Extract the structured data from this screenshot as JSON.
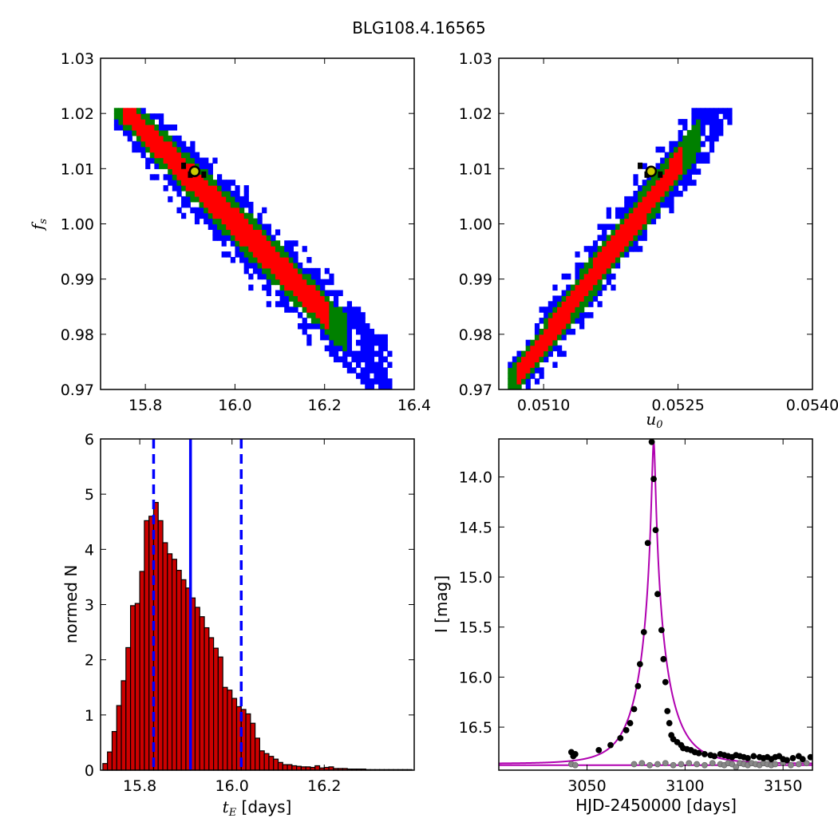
{
  "title": "BLG108.4.16565",
  "colors": {
    "sigma1": "#ff0000",
    "sigma2": "#008000",
    "sigma3": "#0000ff",
    "chain_best": "#000000",
    "best_fit_marker": "#cccc00",
    "hist_bar": "#cc0000",
    "vline": "#0000ff",
    "model": "#b000b0",
    "data_primary": "#000000",
    "data_secondary": "#888888"
  },
  "chart_data": [
    {
      "type": "heatmap",
      "panel": "tE-fs",
      "xlabel": "",
      "ylabel_var": "f",
      "ylabel_sub": "s",
      "xlim": [
        15.7,
        16.4
      ],
      "ylim": [
        0.97,
        1.03
      ],
      "xticks": [
        "15.8",
        "16.0",
        "16.2",
        "16.4"
      ],
      "yticks": [
        "0.97",
        "0.98",
        "0.99",
        "1.00",
        "1.01",
        "1.02",
        "1.03"
      ],
      "band": {
        "x0": 15.73,
        "x1": 16.38,
        "slope_points": [
          [
            15.76,
            1.02
          ],
          [
            16.31,
            0.975
          ]
        ],
        "sigma_halfwidths": [
          0.002,
          0.003,
          0.0045
        ]
      },
      "best_fit": {
        "x": 15.91,
        "y": 1.0095
      }
    },
    {
      "type": "heatmap",
      "panel": "u0-fs",
      "xlabel_var": "u",
      "xlabel_sub": "0",
      "ylabel": "",
      "xlim": [
        0.0505,
        0.054
      ],
      "ylim": [
        0.97,
        1.03
      ],
      "xticks": [
        "0.0510",
        "0.0525",
        "0.0540"
      ],
      "yticks": [
        "0.97",
        "0.98",
        "0.99",
        "1.00",
        "1.01",
        "1.02",
        "1.03"
      ],
      "band": {
        "slope_points": [
          [
            0.05075,
            0.9735
          ],
          [
            0.05295,
            1.0205
          ]
        ],
        "sigma_halfwidths": [
          0.0018,
          0.0028,
          0.0042
        ]
      },
      "best_fit": {
        "x": 0.0522,
        "y": 1.0095
      }
    },
    {
      "type": "bar",
      "panel": "tE-histogram",
      "xlabel_var": "t",
      "xlabel_sub": "E",
      "xlabel_suffix": " [days]",
      "ylabel": "normed N",
      "xlim": [
        15.715,
        16.395
      ],
      "ylim": [
        0,
        6
      ],
      "xticks": [
        "15.8",
        "16.0",
        "16.2"
      ],
      "yticks": [
        "0",
        "1",
        "2",
        "3",
        "4",
        "5",
        "6"
      ],
      "bin_start": 15.72,
      "bin_width": 0.01,
      "values": [
        0.12,
        0.33,
        0.7,
        1.17,
        1.62,
        2.22,
        2.98,
        3.02,
        3.6,
        4.52,
        4.6,
        4.85,
        4.52,
        4.12,
        3.92,
        3.82,
        3.62,
        3.45,
        3.3,
        3.12,
        2.95,
        2.78,
        2.58,
        2.4,
        2.21,
        2.05,
        1.5,
        1.45,
        1.3,
        1.15,
        1.1,
        1.02,
        0.85,
        0.58,
        0.35,
        0.3,
        0.25,
        0.2,
        0.14,
        0.1,
        0.1,
        0.08,
        0.07,
        0.06,
        0.06,
        0.05,
        0.08,
        0.04,
        0.05,
        0.06,
        0.03,
        0.03,
        0.03,
        0.02,
        0.02,
        0.02,
        0.02,
        0.01,
        0.01,
        0.01,
        0.01,
        0.01,
        0.01,
        0.01,
        0.01,
        0.01,
        0.01
      ],
      "vlines": {
        "median": 15.91,
        "lower": 15.83,
        "upper": 16.02
      }
    },
    {
      "type": "scatter",
      "panel": "light-curve",
      "xlabel": "HJD-2450000 [days]",
      "ylabel": "I [mag]",
      "xlim": [
        3005,
        3165
      ],
      "ylim": [
        16.93,
        13.62
      ],
      "xticks": [
        "3050",
        "3100",
        "3150"
      ],
      "yticks": [
        "14.0",
        "14.5",
        "15.0",
        "15.5",
        "16.0",
        "16.5"
      ],
      "model": {
        "t0": 3084.0,
        "tE": 15.91,
        "u0": 0.0522,
        "baseline_mag": 16.865,
        "fs": 1.0095,
        "secondary_baseline": 16.88
      },
      "series": [
        {
          "x": [
            3042,
            3043,
            3044,
            3056,
            3062,
            3067,
            3070,
            3072,
            3074,
            3076,
            3077,
            3079,
            3081,
            3083,
            3084,
            3085,
            3086,
            3088,
            3089,
            3090,
            3091,
            3092,
            3093,
            3094,
            3096,
            3098,
            3099,
            3101,
            3103,
            3105,
            3107,
            3110,
            3113,
            3115,
            3118,
            3120,
            3122,
            3124,
            3126,
            3128,
            3130,
            3132,
            3135,
            3138,
            3140,
            3142,
            3144,
            3146,
            3148,
            3150,
            3152,
            3155,
            3158,
            3160,
            3164
          ],
          "y": [
            16.75,
            16.79,
            16.77,
            16.73,
            16.68,
            16.61,
            16.53,
            16.46,
            16.32,
            16.09,
            15.87,
            15.55,
            14.66,
            13.65,
            14.02,
            14.53,
            15.17,
            15.53,
            15.82,
            16.05,
            16.34,
            16.46,
            16.58,
            16.62,
            16.65,
            16.68,
            16.71,
            16.72,
            16.73,
            16.75,
            16.76,
            16.77,
            16.78,
            16.79,
            16.77,
            16.78,
            16.79,
            16.8,
            16.78,
            16.79,
            16.8,
            16.81,
            16.79,
            16.8,
            16.81,
            16.8,
            16.82,
            16.8,
            16.79,
            16.82,
            16.83,
            16.81,
            16.79,
            16.82,
            16.8
          ]
        },
        {
          "x": [
            3042,
            3044,
            3074,
            3078,
            3082,
            3086,
            3090,
            3094,
            3098,
            3102,
            3106,
            3110,
            3114,
            3118,
            3120,
            3122,
            3124,
            3126,
            3128,
            3130,
            3132,
            3134,
            3136,
            3138,
            3140,
            3142,
            3144,
            3146,
            3150,
            3154,
            3158,
            3162
          ],
          "y": [
            16.87,
            16.88,
            16.87,
            16.86,
            16.88,
            16.87,
            16.86,
            16.88,
            16.87,
            16.86,
            16.87,
            16.88,
            16.86,
            16.87,
            16.88,
            16.86,
            16.87,
            16.9,
            16.86,
            16.87,
            16.88,
            16.86,
            16.87,
            16.88,
            16.86,
            16.87,
            16.88,
            16.87,
            16.86,
            16.88,
            16.87,
            16.86
          ]
        }
      ]
    }
  ]
}
